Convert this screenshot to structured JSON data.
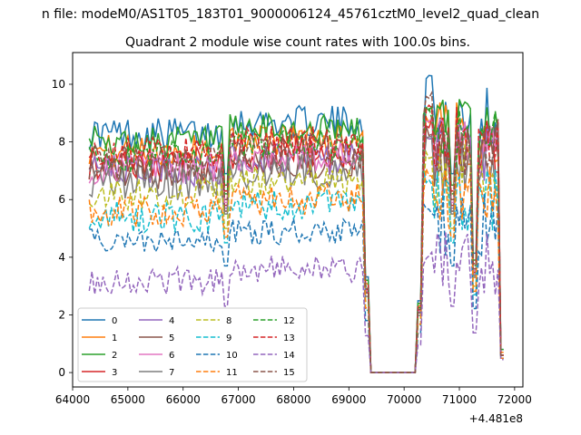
{
  "header": {
    "suptitle": "n file: modeM0/AS1T05_183T01_9000006124_45761cztM0_level2_quad_clean",
    "title": "Quadrant 2 module wise count rates with 100.0s bins."
  },
  "axis": {
    "x_offset_label": "+4.481e8"
  },
  "chart_data": {
    "type": "line",
    "title": "Quadrant 2 module wise count rates with 100.0s bins.",
    "xlabel": "",
    "ylabel": "",
    "x_offset": "+4.481e8",
    "xlim": [
      64000,
      72150
    ],
    "ylim": [
      -0.5,
      11.1
    ],
    "xticks": [
      64000,
      65000,
      66000,
      67000,
      68000,
      69000,
      70000,
      71000,
      72000
    ],
    "yticks": [
      0,
      2,
      4,
      6,
      8,
      10
    ],
    "grid": false,
    "legend_placement": "lower-left",
    "legend_columns": 4,
    "x_ranges": [
      [
        64300,
        69300
      ],
      [
        69400,
        70300
      ],
      [
        70300,
        71800
      ]
    ],
    "series": [
      {
        "name": "0",
        "color": "#1f77b4",
        "style": "solid",
        "level": 8.3,
        "spread": 0.35,
        "peak": 10.55,
        "dip": 6.9,
        "end": 0.8
      },
      {
        "name": "1",
        "color": "#ff7f0e",
        "style": "solid",
        "level": 7.7,
        "spread": 0.35,
        "peak": 9.0,
        "dip": 6.0,
        "end": 0.7
      },
      {
        "name": "2",
        "color": "#2ca02c",
        "style": "solid",
        "level": 8.0,
        "spread": 0.35,
        "peak": 9.3,
        "dip": 6.5,
        "end": 0.8
      },
      {
        "name": "3",
        "color": "#d62728",
        "style": "solid",
        "level": 7.2,
        "spread": 0.4,
        "peak": 8.8,
        "dip": 5.8,
        "end": 0.6
      },
      {
        "name": "4",
        "color": "#9467bd",
        "style": "solid",
        "level": 7.0,
        "spread": 0.35,
        "peak": 8.5,
        "dip": 5.7,
        "end": 0.6
      },
      {
        "name": "5",
        "color": "#8c564b",
        "style": "solid",
        "level": 6.9,
        "spread": 0.35,
        "peak": 8.6,
        "dip": 5.6,
        "end": 0.6
      },
      {
        "name": "6",
        "color": "#e377c2",
        "style": "solid",
        "level": 7.1,
        "spread": 0.35,
        "peak": 8.9,
        "dip": 5.9,
        "end": 0.6
      },
      {
        "name": "7",
        "color": "#7f7f7f",
        "style": "solid",
        "level": 6.6,
        "spread": 0.4,
        "peak": 8.4,
        "dip": 5.5,
        "end": 0.5
      },
      {
        "name": "8",
        "color": "#bcbd22",
        "style": "dashed",
        "level": 6.2,
        "spread": 0.35,
        "peak": 7.8,
        "dip": 5.0,
        "end": 0.5
      },
      {
        "name": "9",
        "color": "#17becf",
        "style": "dashed",
        "level": 5.4,
        "spread": 0.35,
        "peak": 6.8,
        "dip": 4.5,
        "end": 0.5
      },
      {
        "name": "10",
        "color": "#1f77b4",
        "style": "dashed",
        "level": 4.5,
        "spread": 0.3,
        "peak": 5.8,
        "dip": 3.7,
        "end": 0.5
      },
      {
        "name": "11",
        "color": "#ff7f0e",
        "style": "dashed",
        "level": 5.6,
        "spread": 0.35,
        "peak": 7.2,
        "dip": 4.7,
        "end": 0.5
      },
      {
        "name": "12",
        "color": "#2ca02c",
        "style": "dashed",
        "level": 7.5,
        "spread": 0.35,
        "peak": 9.2,
        "dip": 6.2,
        "end": 0.6
      },
      {
        "name": "13",
        "color": "#d62728",
        "style": "dashed",
        "level": 7.6,
        "spread": 0.35,
        "peak": 9.4,
        "dip": 6.3,
        "end": 0.6
      },
      {
        "name": "14",
        "color": "#9467bd",
        "style": "dashed",
        "level": 3.2,
        "spread": 0.3,
        "peak": 4.2,
        "dip": 2.3,
        "end": 0.45
      },
      {
        "name": "15",
        "color": "#8c564b",
        "style": "dashed",
        "level": 7.3,
        "spread": 0.4,
        "peak": 9.8,
        "dip": 6.0,
        "end": 0.6
      }
    ]
  }
}
